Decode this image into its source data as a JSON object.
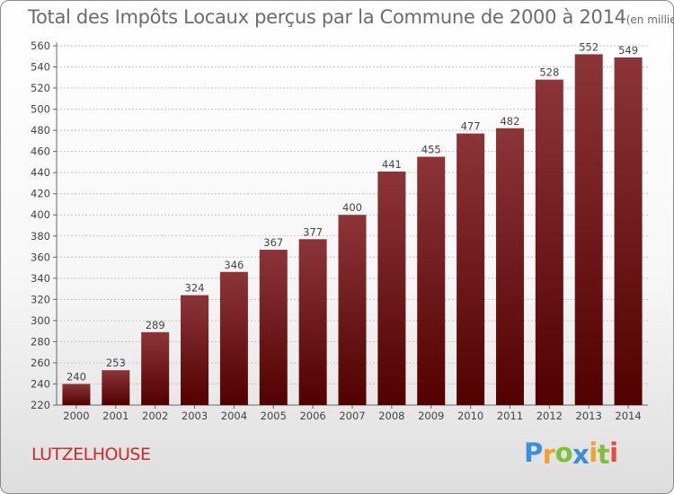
{
  "chart_data": {
    "type": "bar",
    "title": "Total des Impôts Locaux perçus par la Commune de 2000 à 2014",
    "subtitle": "(en milliers d'€)",
    "categories": [
      "2000",
      "2001",
      "2002",
      "2003",
      "2004",
      "2005",
      "2006",
      "2007",
      "2008",
      "2009",
      "2010",
      "2011",
      "2012",
      "2013",
      "2014"
    ],
    "values": [
      240,
      253,
      289,
      324,
      346,
      367,
      377,
      400,
      441,
      455,
      477,
      482,
      528,
      552,
      549
    ],
    "ylim": [
      220,
      560
    ],
    "yticks": [
      220,
      240,
      260,
      280,
      300,
      320,
      340,
      360,
      380,
      400,
      420,
      440,
      460,
      480,
      500,
      520,
      540,
      560
    ],
    "xlabel": "",
    "ylabel": "",
    "grid": "horizontal dashed",
    "bar_color_top": "#8c3538",
    "bar_color_bottom": "#520000"
  },
  "commune": "LUTZELHOUSE",
  "brand": {
    "letters": [
      "P",
      "r",
      "o",
      "x",
      "i",
      "t",
      "i"
    ],
    "colors": [
      "#3b8fd6",
      "#f2a228",
      "#7fbf3a",
      "#3b8fd6",
      "#f2a228",
      "#7fbf3a",
      "#e84a3a"
    ]
  }
}
